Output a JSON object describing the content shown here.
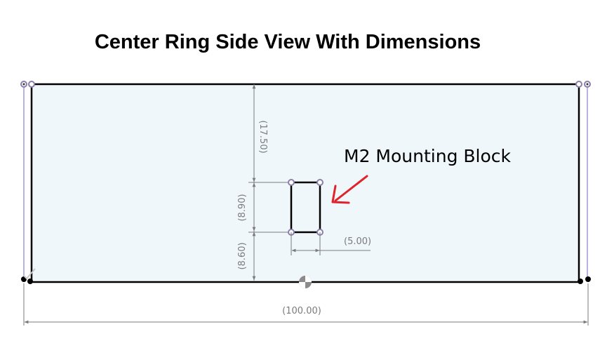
{
  "title": "Center Ring Side View With Dimensions",
  "callout": "M2 Mounting Block",
  "dimensions": {
    "top_gap": "(17.50)",
    "block_height": "(8.90)",
    "bottom_gap": "(8.60)",
    "block_width": "(5.00)",
    "overall_width": "(100.00)"
  },
  "colors": {
    "sketch_fill": "#f0f7fb",
    "outline": "#000000",
    "dimension": "#7b7b7b",
    "construction_line": "#b7b2e6",
    "point": "#8a7faa",
    "arrow": "#e0222b"
  }
}
